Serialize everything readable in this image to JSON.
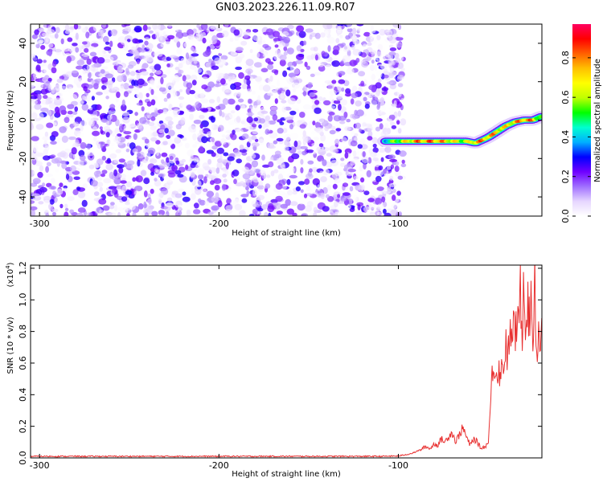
{
  "title": "GN03.2023.226.11.09.R07",
  "chart_data": [
    {
      "type": "heatmap",
      "xlabel": "Height of straight line (km)",
      "ylabel": "Frequency (Hz)",
      "xlim": [
        -305,
        -20
      ],
      "ylim": [
        -50,
        50
      ],
      "xticks": [
        -300,
        -200,
        -100
      ],
      "yticks": [
        -40,
        -20,
        0,
        20,
        40
      ],
      "noise_region": {
        "x_range": [
          -305,
          -97
        ],
        "y_range": [
          -50,
          50
        ],
        "amplitude": 0.25
      },
      "signal_trace": {
        "x": [
          -107,
          -100,
          -90,
          -80,
          -70,
          -62,
          -57,
          -50,
          -45,
          -40,
          -35,
          -30,
          -25,
          -20
        ],
        "y": [
          -11,
          -11,
          -11,
          -11,
          -11,
          -11,
          -12,
          -9,
          -6,
          -3,
          -1,
          0,
          0,
          2
        ],
        "amplitude": [
          0.5,
          0.7,
          0.9,
          0.95,
          0.8,
          0.7,
          0.9,
          0.9,
          0.85,
          0.8,
          0.85,
          0.95,
          0.9,
          0.6
        ]
      },
      "colorbar": {
        "label": "Normalized spectral amplitude",
        "ticks": [
          0.0,
          0.2,
          0.4,
          0.6,
          0.8
        ],
        "range": [
          0,
          0.97
        ],
        "colormap": [
          "#ffffff",
          "#e6d6ff",
          "#a070ff",
          "#7000ff",
          "#0000ff",
          "#00b0ff",
          "#00ffd0",
          "#00ff00",
          "#c0ff00",
          "#ffff00",
          "#ffc000",
          "#ff6000",
          "#ff0000",
          "#ff0060"
        ]
      }
    },
    {
      "type": "line",
      "xlabel": "Height of straight line (km)",
      "ylabel": "SNR (10 * v/v)",
      "y_multiplier": "(x10",
      "y_multiplier_exp": "4",
      "y_multiplier_close": ")",
      "xlim": [
        -305,
        -20
      ],
      "ylim": [
        0,
        1.22
      ],
      "xticks": [
        -300,
        -200,
        -100
      ],
      "yticks": [
        0.0,
        0.2,
        0.4,
        0.6,
        0.8,
        1.0,
        1.2
      ],
      "series": [
        {
          "color": "#e83030",
          "x": [
            -305,
            -290,
            -260,
            -230,
            -200,
            -170,
            -140,
            -110,
            -100,
            -96,
            -92,
            -88,
            -85,
            -82,
            -80,
            -78,
            -76,
            -74,
            -72,
            -70,
            -68,
            -66,
            -64,
            -62,
            -60,
            -58,
            -56,
            -54,
            -52,
            -50,
            -49,
            -48,
            -47,
            -46,
            -45,
            -44,
            -43,
            -42,
            -41,
            -40,
            -39,
            -38,
            -37,
            -36,
            -35,
            -34,
            -33,
            -32,
            -31,
            -30,
            -29,
            -28,
            -27,
            -26,
            -25,
            -24,
            -23,
            -22,
            -21,
            -20
          ],
          "y": [
            0.01,
            0.01,
            0.01,
            0.01,
            0.01,
            0.01,
            0.01,
            0.01,
            0.012,
            0.02,
            0.03,
            0.05,
            0.07,
            0.06,
            0.09,
            0.08,
            0.12,
            0.1,
            0.14,
            0.16,
            0.1,
            0.15,
            0.19,
            0.13,
            0.08,
            0.12,
            0.1,
            0.06,
            0.07,
            0.09,
            0.25,
            0.48,
            0.61,
            0.58,
            0.5,
            0.62,
            0.45,
            0.68,
            0.55,
            0.77,
            0.6,
            0.82,
            0.7,
            0.9,
            0.74,
            0.88,
            0.8,
            1.08,
            0.76,
            1.22,
            0.82,
            1.0,
            0.85,
            1.05,
            0.7,
            1.22,
            0.62,
            0.82,
            0.66,
            0.92
          ]
        }
      ]
    }
  ]
}
